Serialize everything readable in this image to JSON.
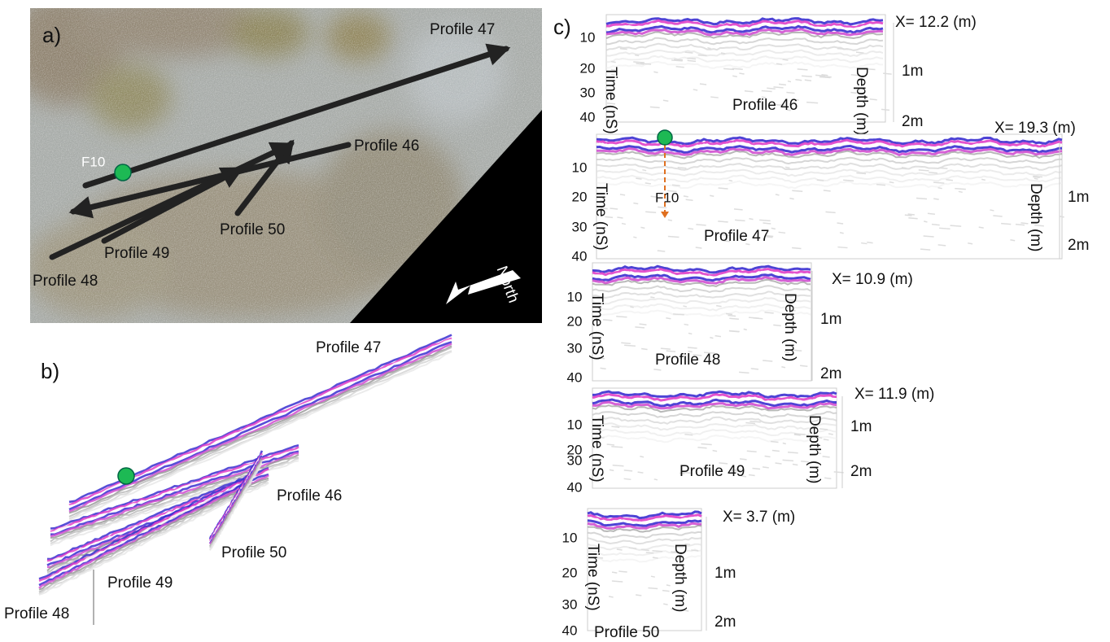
{
  "panel_a": {
    "label": "a)",
    "profiles": [
      "Profile 47",
      "Profile 46",
      "Profile 50",
      "Profile 49",
      "Profile 48"
    ],
    "point": "F10",
    "north": "North"
  },
  "panel_b": {
    "label": "b)",
    "profiles": [
      "Profile 47",
      "Profile 46",
      "Profile 50",
      "Profile 49",
      "Profile 48"
    ]
  },
  "panel_c": {
    "label": "c)",
    "point": "F10",
    "sections": [
      {
        "name": "Profile 46",
        "length": "X= 12.2 (m)",
        "time_axis": "Time (nS)",
        "depth_axis": "Depth (m)",
        "time_ticks": [
          10,
          20,
          30,
          40
        ],
        "depth_ticks": [
          "1m",
          "2m"
        ]
      },
      {
        "name": "Profile 47",
        "length": "X= 19.3 (m)",
        "time_axis": "Time (nS)",
        "depth_axis": "Depth (m)",
        "time_ticks": [
          10,
          20,
          30,
          40
        ],
        "depth_ticks": [
          "1m",
          "2m"
        ]
      },
      {
        "name": "Profile 48",
        "length": "X= 10.9 (m)",
        "time_axis": "Time (nS)",
        "depth_axis": "Depth (m)",
        "time_ticks": [
          10,
          20,
          30,
          40
        ],
        "depth_ticks": [
          "1m",
          "2m"
        ]
      },
      {
        "name": "Profile 49",
        "length": "X= 11.9 (m)",
        "time_axis": "Time (nS)",
        "depth_axis": "Depth (m)",
        "time_ticks": [
          10,
          20,
          30,
          40
        ],
        "depth_ticks": [
          "1m",
          "2m"
        ]
      },
      {
        "name": "Profile 50",
        "length": "X= 3.7 (m)",
        "time_axis": "Time (nS)",
        "depth_axis": "Depth (m)",
        "time_ticks": [
          10,
          20,
          30,
          40
        ],
        "depth_ticks": [
          "1m",
          "2m"
        ]
      }
    ]
  }
}
